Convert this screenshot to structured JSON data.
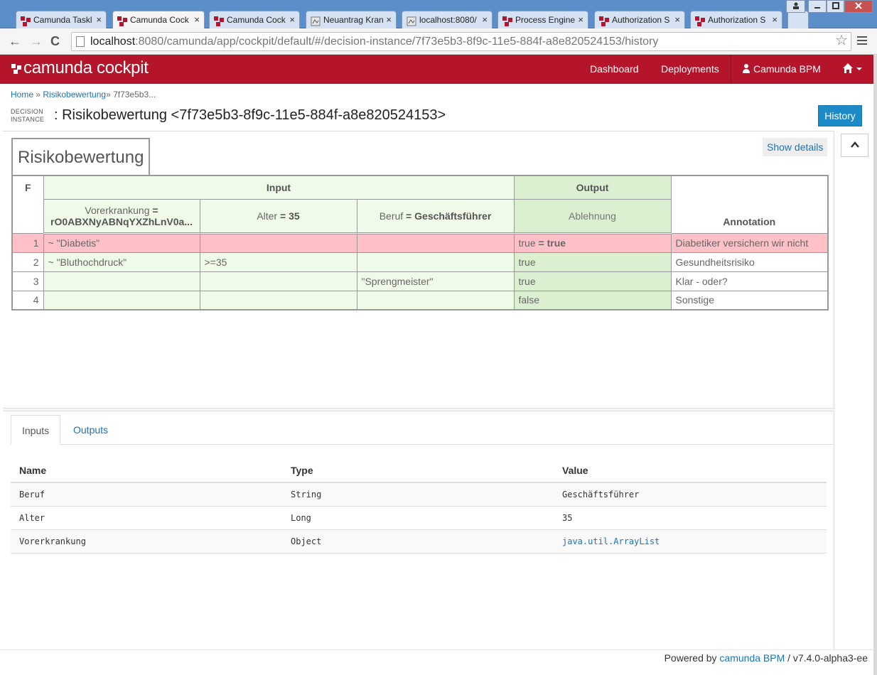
{
  "browser": {
    "tabs": [
      {
        "label": "Camunda Taskl",
        "icon": "camunda-icon"
      },
      {
        "label": "Camunda Cock",
        "icon": "camunda-icon",
        "active": true
      },
      {
        "label": "Camunda Cock",
        "icon": "camunda-icon"
      },
      {
        "label": "Neuantrag Kran",
        "icon": "page-icon"
      },
      {
        "label": "localhost:8080/",
        "icon": "page-icon"
      },
      {
        "label": "Process Engine",
        "icon": "camunda-icon"
      },
      {
        "label": "Authorization S",
        "icon": "camunda-icon"
      },
      {
        "label": "Authorization S",
        "icon": "camunda-icon"
      }
    ],
    "tab_close_glyph": "×",
    "url_host": "localhost",
    "url_rest": ":8080/camunda/app/cockpit/default/#/decision-instance/7f73e5b3-8f9c-11e5-884f-a8e820524153/history",
    "back_glyph": "←",
    "forward_glyph": "→",
    "reload_glyph": "C",
    "star_glyph": "☆"
  },
  "appbar": {
    "brand": "camunda cockpit",
    "nav": {
      "dashboard": "Dashboard",
      "deployments": "Deployments",
      "user": "Camunda BPM"
    },
    "color": "#b5152b"
  },
  "breadcrumb": {
    "home": "Home",
    "sep1": " » ",
    "decision": "Risikobewertung",
    "sep2": "» ",
    "instance": "7f73e5b3..."
  },
  "header": {
    "type_line1": "DECISION",
    "type_line2": "INSTANCE",
    "title": ": Risikobewertung <7f73e5b3-8f9c-11e5-884f-a8e820524153>",
    "history_button": "History"
  },
  "dmn": {
    "name": "Risikobewertung",
    "show_details": "Show details",
    "hit_policy": "F",
    "input_header": "Input",
    "output_header": "Output",
    "annotation_header": "Annotation",
    "inputs": [
      {
        "label": "Vorerkrankung",
        "eq": " =",
        "value": "rO0ABXNyABNqYXZhLnV0a..."
      },
      {
        "label": "Alter",
        "eq": " = ",
        "value": "35"
      },
      {
        "label": "Beruf",
        "eq": " = ",
        "value": "Geschäftsführer"
      }
    ],
    "output": {
      "label": "Ablehnung"
    },
    "rules": [
      {
        "num": "1",
        "in1": "~ \"Diabetis\"",
        "in2": "",
        "in3": "",
        "out": "true",
        "out_eq": " = ",
        "out_val": "true",
        "annotation": "Diabetiker versichern wir nicht",
        "fired": true
      },
      {
        "num": "2",
        "in1": "~ \"Bluthochdruck\"",
        "in2": ">=35",
        "in3": "",
        "out": "true",
        "annotation": "Gesundheitsrisiko"
      },
      {
        "num": "3",
        "in1": "",
        "in2": "",
        "in3": "\"Sprengmeister\"",
        "out": "true",
        "annotation": "Klar - oder?"
      },
      {
        "num": "4",
        "in1": "",
        "in2": "",
        "in3": "",
        "out": "false",
        "annotation": "Sonstige"
      }
    ],
    "fired_color": "#ffc0c8",
    "input_color": "#f0fae8",
    "output_color": "#dbf0d0"
  },
  "panel": {
    "tabs": {
      "inputs": "Inputs",
      "outputs": "Outputs"
    },
    "columns": {
      "name": "Name",
      "type": "Type",
      "value": "Value"
    },
    "rows": [
      {
        "name": "Beruf",
        "type": "String",
        "value": "Geschäftsführer"
      },
      {
        "name": "Alter",
        "type": "Long",
        "value": "35"
      },
      {
        "name": "Vorerkrankung",
        "type": "Object",
        "value": "java.util.ArrayList"
      }
    ]
  },
  "footer": {
    "prefix": "Powered by ",
    "link": "camunda BPM",
    "suffix": " / v7.4.0-alpha3-ee"
  }
}
